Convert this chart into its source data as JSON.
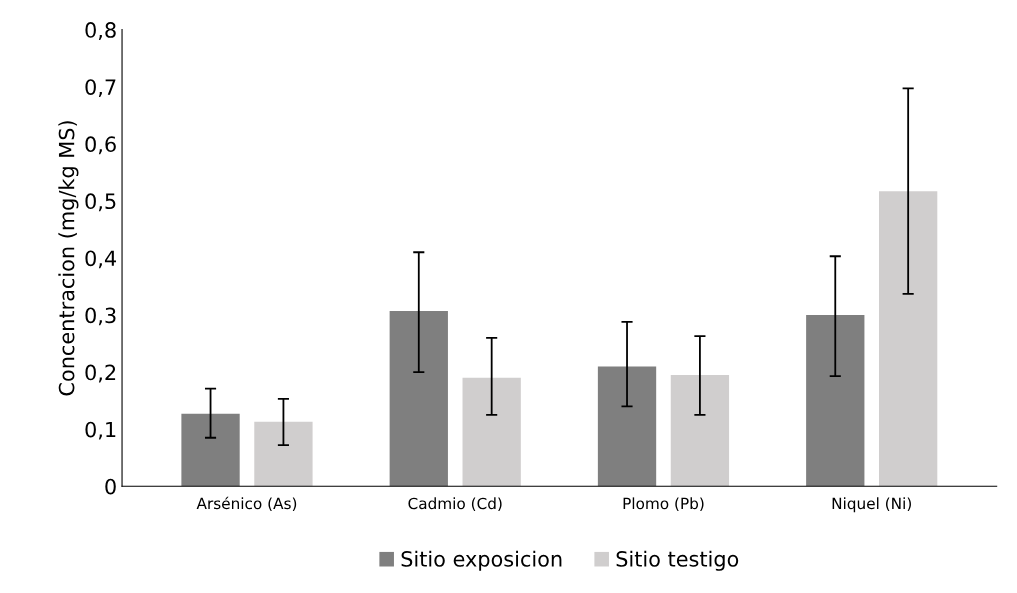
{
  "chart_data": {
    "type": "bar",
    "ylabel": "Concentracion (mg/kg MS)",
    "categories": [
      "Arsénico (As)",
      "Cadmio (Cd)",
      "Plomo (Pb)",
      "Niquel (Ni)"
    ],
    "series": [
      {
        "name": "Sitio exposicion",
        "color": "#7f7f7f",
        "values": [
          0.127,
          0.307,
          0.21,
          0.3
        ],
        "errors": [
          [
            0.085,
            0.171
          ],
          [
            0.2,
            0.41
          ],
          [
            0.14,
            0.288
          ],
          [
            0.193,
            0.403
          ]
        ]
      },
      {
        "name": "Sitio testigo",
        "color": "#d0cece",
        "values": [
          0.113,
          0.19,
          0.195,
          0.517
        ],
        "errors": [
          [
            0.072,
            0.153
          ],
          [
            0.125,
            0.26
          ],
          [
            0.125,
            0.263
          ],
          [
            0.337,
            0.697
          ]
        ]
      }
    ],
    "ylim": [
      0,
      0.8
    ],
    "yticks": [
      {
        "value": 0,
        "label": "0"
      },
      {
        "value": 0.1,
        "label": "0,1"
      },
      {
        "value": 0.2,
        "label": "0,2"
      },
      {
        "value": 0.3,
        "label": "0,3"
      },
      {
        "value": 0.4,
        "label": "0,4"
      },
      {
        "value": 0.5,
        "label": "0,5"
      },
      {
        "value": 0.6,
        "label": "0,6"
      },
      {
        "value": 0.7,
        "label": "0,7"
      },
      {
        "value": 0.8,
        "label": "0,8"
      }
    ],
    "grid": false,
    "legend": "bottom"
  }
}
